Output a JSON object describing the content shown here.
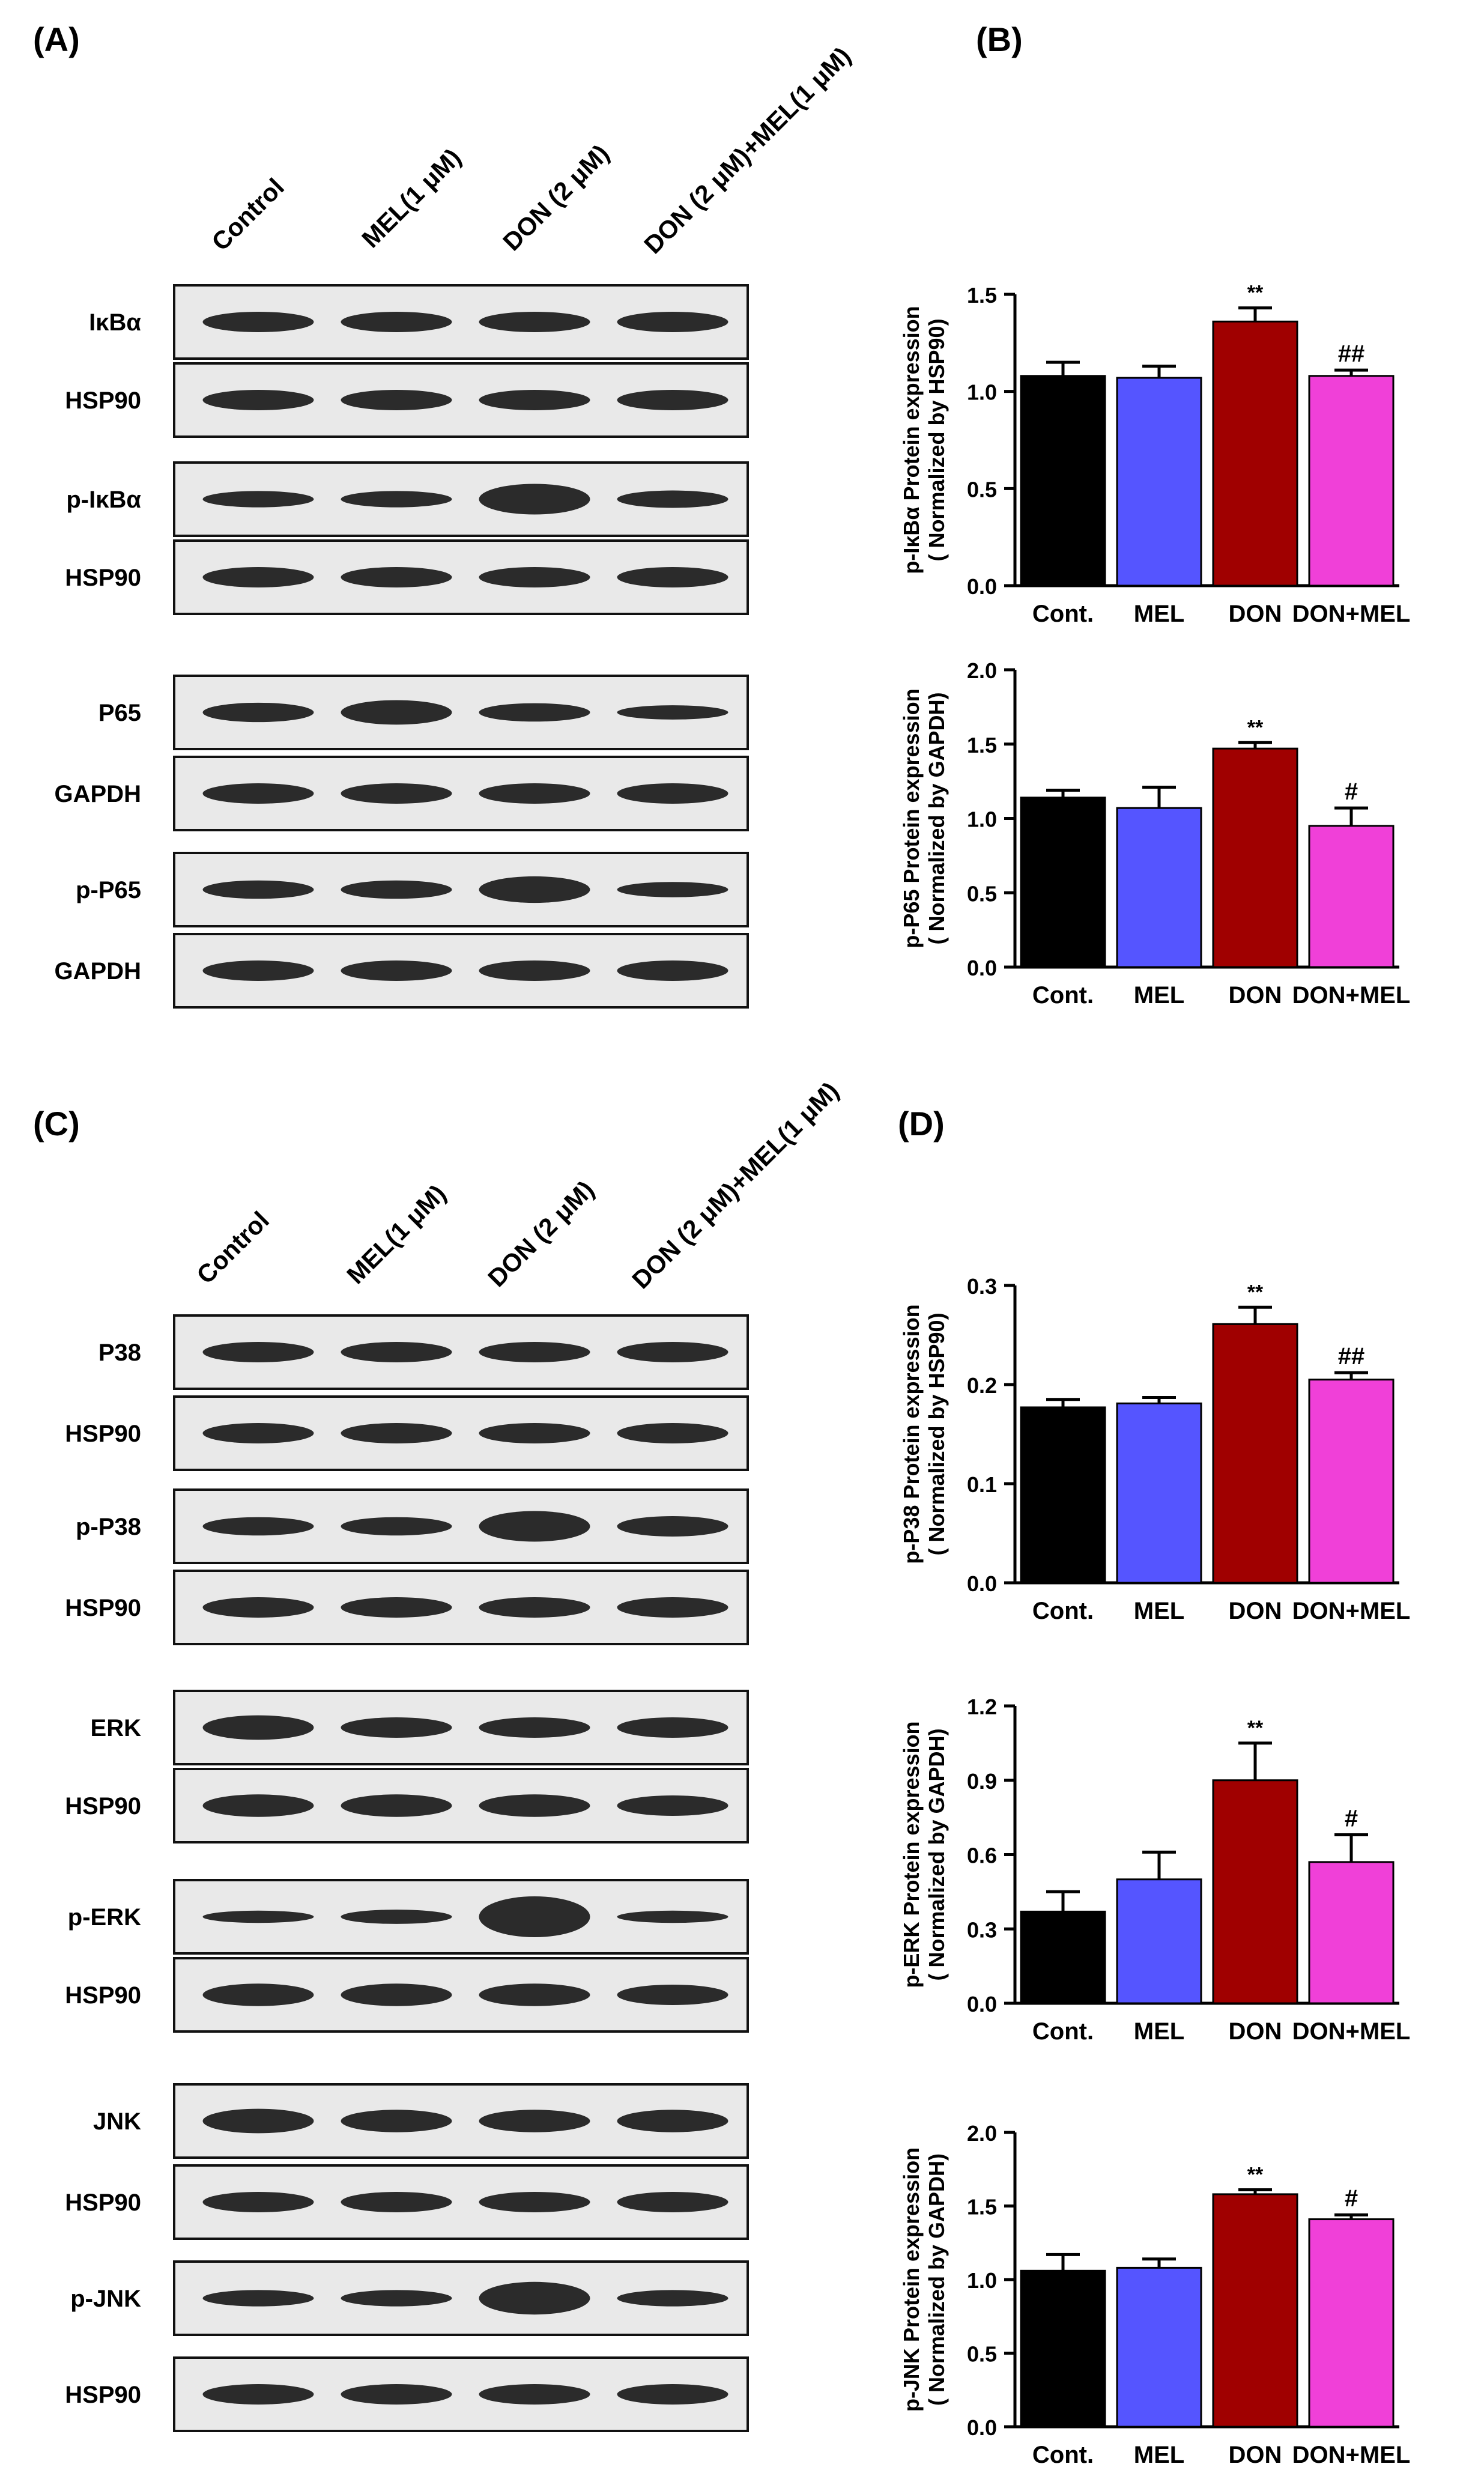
{
  "panels": {
    "A": "(A)",
    "B": "(B)",
    "C": "(C)",
    "D": "(D)"
  },
  "lanes": [
    "Control",
    "MEL(1 μM)",
    "DON (2 μM)",
    "DON (2 μM)+MEL(1 μM)"
  ],
  "blots_A": [
    "IκBα",
    "HSP90",
    "p-IκBα",
    "HSP90",
    "P65",
    "GAPDH",
    "p-P65",
    "GAPDH"
  ],
  "blots_C": [
    "P38",
    "HSP90",
    "p-P38",
    "HSP90",
    "ERK",
    "HSP90",
    "p-ERK",
    "HSP90",
    "JNK",
    "HSP90",
    "p-JNK",
    "HSP90"
  ],
  "colors": {
    "control": "#000000",
    "mel": "#5555ff",
    "don": "#a00000",
    "don_mel": "#f040d8",
    "axis": "#000000"
  },
  "chart_data": [
    {
      "id": "pIkBa",
      "type": "bar",
      "ylabel_1": "p-IκBα Protein expression",
      "ylabel_2": "( Normalized by HSP90)",
      "categories": [
        "Cont.",
        "MEL",
        "DON",
        "DON+MEL"
      ],
      "values": [
        1.08,
        1.07,
        1.36,
        1.08
      ],
      "errors": [
        0.07,
        0.06,
        0.07,
        0.03
      ],
      "annotations": [
        "",
        "",
        "**",
        "##"
      ],
      "ylim": [
        0,
        1.5
      ],
      "yticks": [
        0.0,
        0.5,
        1.0,
        1.5
      ],
      "ytick_labels": [
        "0.0",
        "0.5",
        "1.0",
        "1.5"
      ]
    },
    {
      "id": "pP65",
      "type": "bar",
      "ylabel_1": "p-P65 Protein expression",
      "ylabel_2": "( Normalized by GAPDH)",
      "categories": [
        "Cont.",
        "MEL",
        "DON",
        "DON+MEL"
      ],
      "values": [
        1.14,
        1.07,
        1.47,
        0.95
      ],
      "errors": [
        0.05,
        0.14,
        0.04,
        0.12
      ],
      "annotations": [
        "",
        "",
        "**",
        "#"
      ],
      "ylim": [
        0,
        2.0
      ],
      "yticks": [
        0.0,
        0.5,
        1.0,
        1.5,
        2.0
      ],
      "ytick_labels": [
        "0.0",
        "0.5",
        "1.0",
        "1.5",
        "2.0"
      ]
    },
    {
      "id": "pP38",
      "type": "bar",
      "ylabel_1": "p-P38 Protein expression",
      "ylabel_2": "( Normalized by HSP90)",
      "categories": [
        "Cont.",
        "MEL",
        "DON",
        "DON+MEL"
      ],
      "values": [
        0.177,
        0.181,
        0.261,
        0.205
      ],
      "errors": [
        0.008,
        0.006,
        0.017,
        0.007
      ],
      "annotations": [
        "",
        "",
        "**",
        "##"
      ],
      "ylim": [
        0,
        0.3
      ],
      "yticks": [
        0.0,
        0.1,
        0.2,
        0.3
      ],
      "ytick_labels": [
        "0.0",
        "0.1",
        "0.2",
        "0.3"
      ]
    },
    {
      "id": "pERK",
      "type": "bar",
      "ylabel_1": "p-ERK Protein expression",
      "ylabel_2": "( Normalized by GAPDH)",
      "categories": [
        "Cont.",
        "MEL",
        "DON",
        "DON+MEL"
      ],
      "values": [
        0.37,
        0.5,
        0.9,
        0.57
      ],
      "errors": [
        0.08,
        0.11,
        0.15,
        0.11
      ],
      "annotations": [
        "",
        "",
        "**",
        "#"
      ],
      "ylim": [
        0,
        1.2
      ],
      "yticks": [
        0.0,
        0.3,
        0.6,
        0.9,
        1.2
      ],
      "ytick_labels": [
        "0.0",
        "0.3",
        "0.6",
        "0.9",
        "1.2"
      ]
    },
    {
      "id": "pJNK",
      "type": "bar",
      "ylabel_1": "p-JNK Protein expression",
      "ylabel_2": "( Normalized by GAPDH)",
      "categories": [
        "Cont.",
        "MEL",
        "DON",
        "DON+MEL"
      ],
      "values": [
        1.06,
        1.08,
        1.58,
        1.41
      ],
      "errors": [
        0.11,
        0.06,
        0.03,
        0.03
      ],
      "annotations": [
        "",
        "",
        "**",
        "#"
      ],
      "ylim": [
        0,
        2.0
      ],
      "yticks": [
        0.0,
        0.5,
        1.0,
        1.5,
        2.0
      ],
      "ytick_labels": [
        "0.0",
        "0.5",
        "1.0",
        "1.5",
        "2.0"
      ]
    }
  ]
}
